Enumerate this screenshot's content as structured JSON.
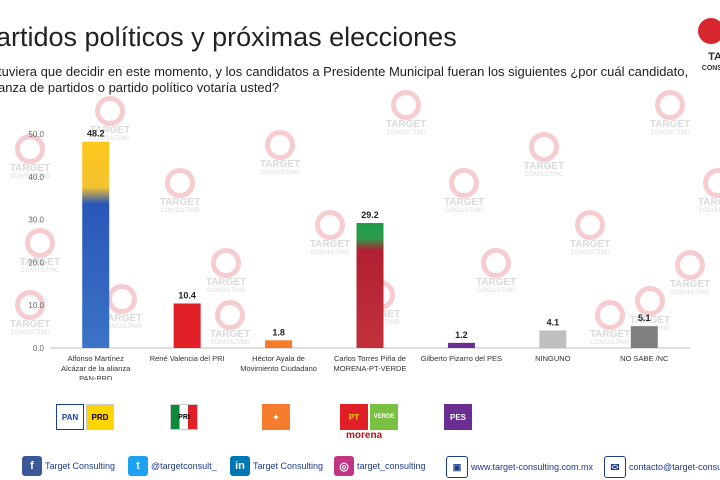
{
  "header": {
    "title": "artidos políticos y próximas elecciones",
    "question_line1": "tuviera que decidir en este momento, y los candidatos a Presidente Municipal fueran los siguientes ¿por cuál candidato,",
    "question_line2": "anza de partidos o partido político votaría usted?",
    "brand_text1": "TA",
    "brand_text2": "CONS",
    "watermark_title": "TARGET",
    "watermark_sub": "CONSULTING"
  },
  "chart_data": {
    "type": "bar",
    "categories": [
      [
        "Alfonso Martínez",
        "Alcázar de la alianza",
        "PAN-PRD"
      ],
      [
        "René Valencia del PRI"
      ],
      [
        "Héctor Ayala de",
        "Movimiento Ciudadano"
      ],
      [
        "Carlos Torres Piña de",
        "MORENA-PT-VERDE"
      ],
      [
        "Gilberto Pizarro del PES"
      ],
      [
        "NINGUNO"
      ],
      [
        "NO SABE /NC"
      ]
    ],
    "values": [
      48.2,
      10.4,
      1.8,
      29.2,
      1.2,
      4.1,
      5.1
    ],
    "value_labels": [
      "48.2",
      "10.4",
      "1.8",
      "29.2",
      "1.2",
      "4.1",
      "5.1"
    ],
    "colors": [
      "#3a6fc4",
      "#e01f26",
      "#f47c2c",
      "#b82d3a",
      "#6a2d91",
      "#bfbfbf",
      "#808080"
    ],
    "yticks": [
      "0.0",
      "10.0",
      "20.0",
      "30.0",
      "40.0",
      "50.0"
    ],
    "ylim": [
      0,
      50
    ],
    "grid": false,
    "title": "",
    "xlabel": "",
    "ylabel": ""
  },
  "parties": {
    "pan": "PAN",
    "prd": "PRD",
    "pt": "PT",
    "verde": "VERDE",
    "morena": "morena",
    "pes": "PES",
    "pri": "PRI",
    "mc_icon": "eagle-icon"
  },
  "footer": {
    "facebook": "Target Consulting",
    "twitter": "@targetconsult_",
    "linkedin": "Target Consulting",
    "instagram": "target_consulting",
    "web": "www.target-consulting.com.mx",
    "email": "contacto@target-consulting"
  }
}
